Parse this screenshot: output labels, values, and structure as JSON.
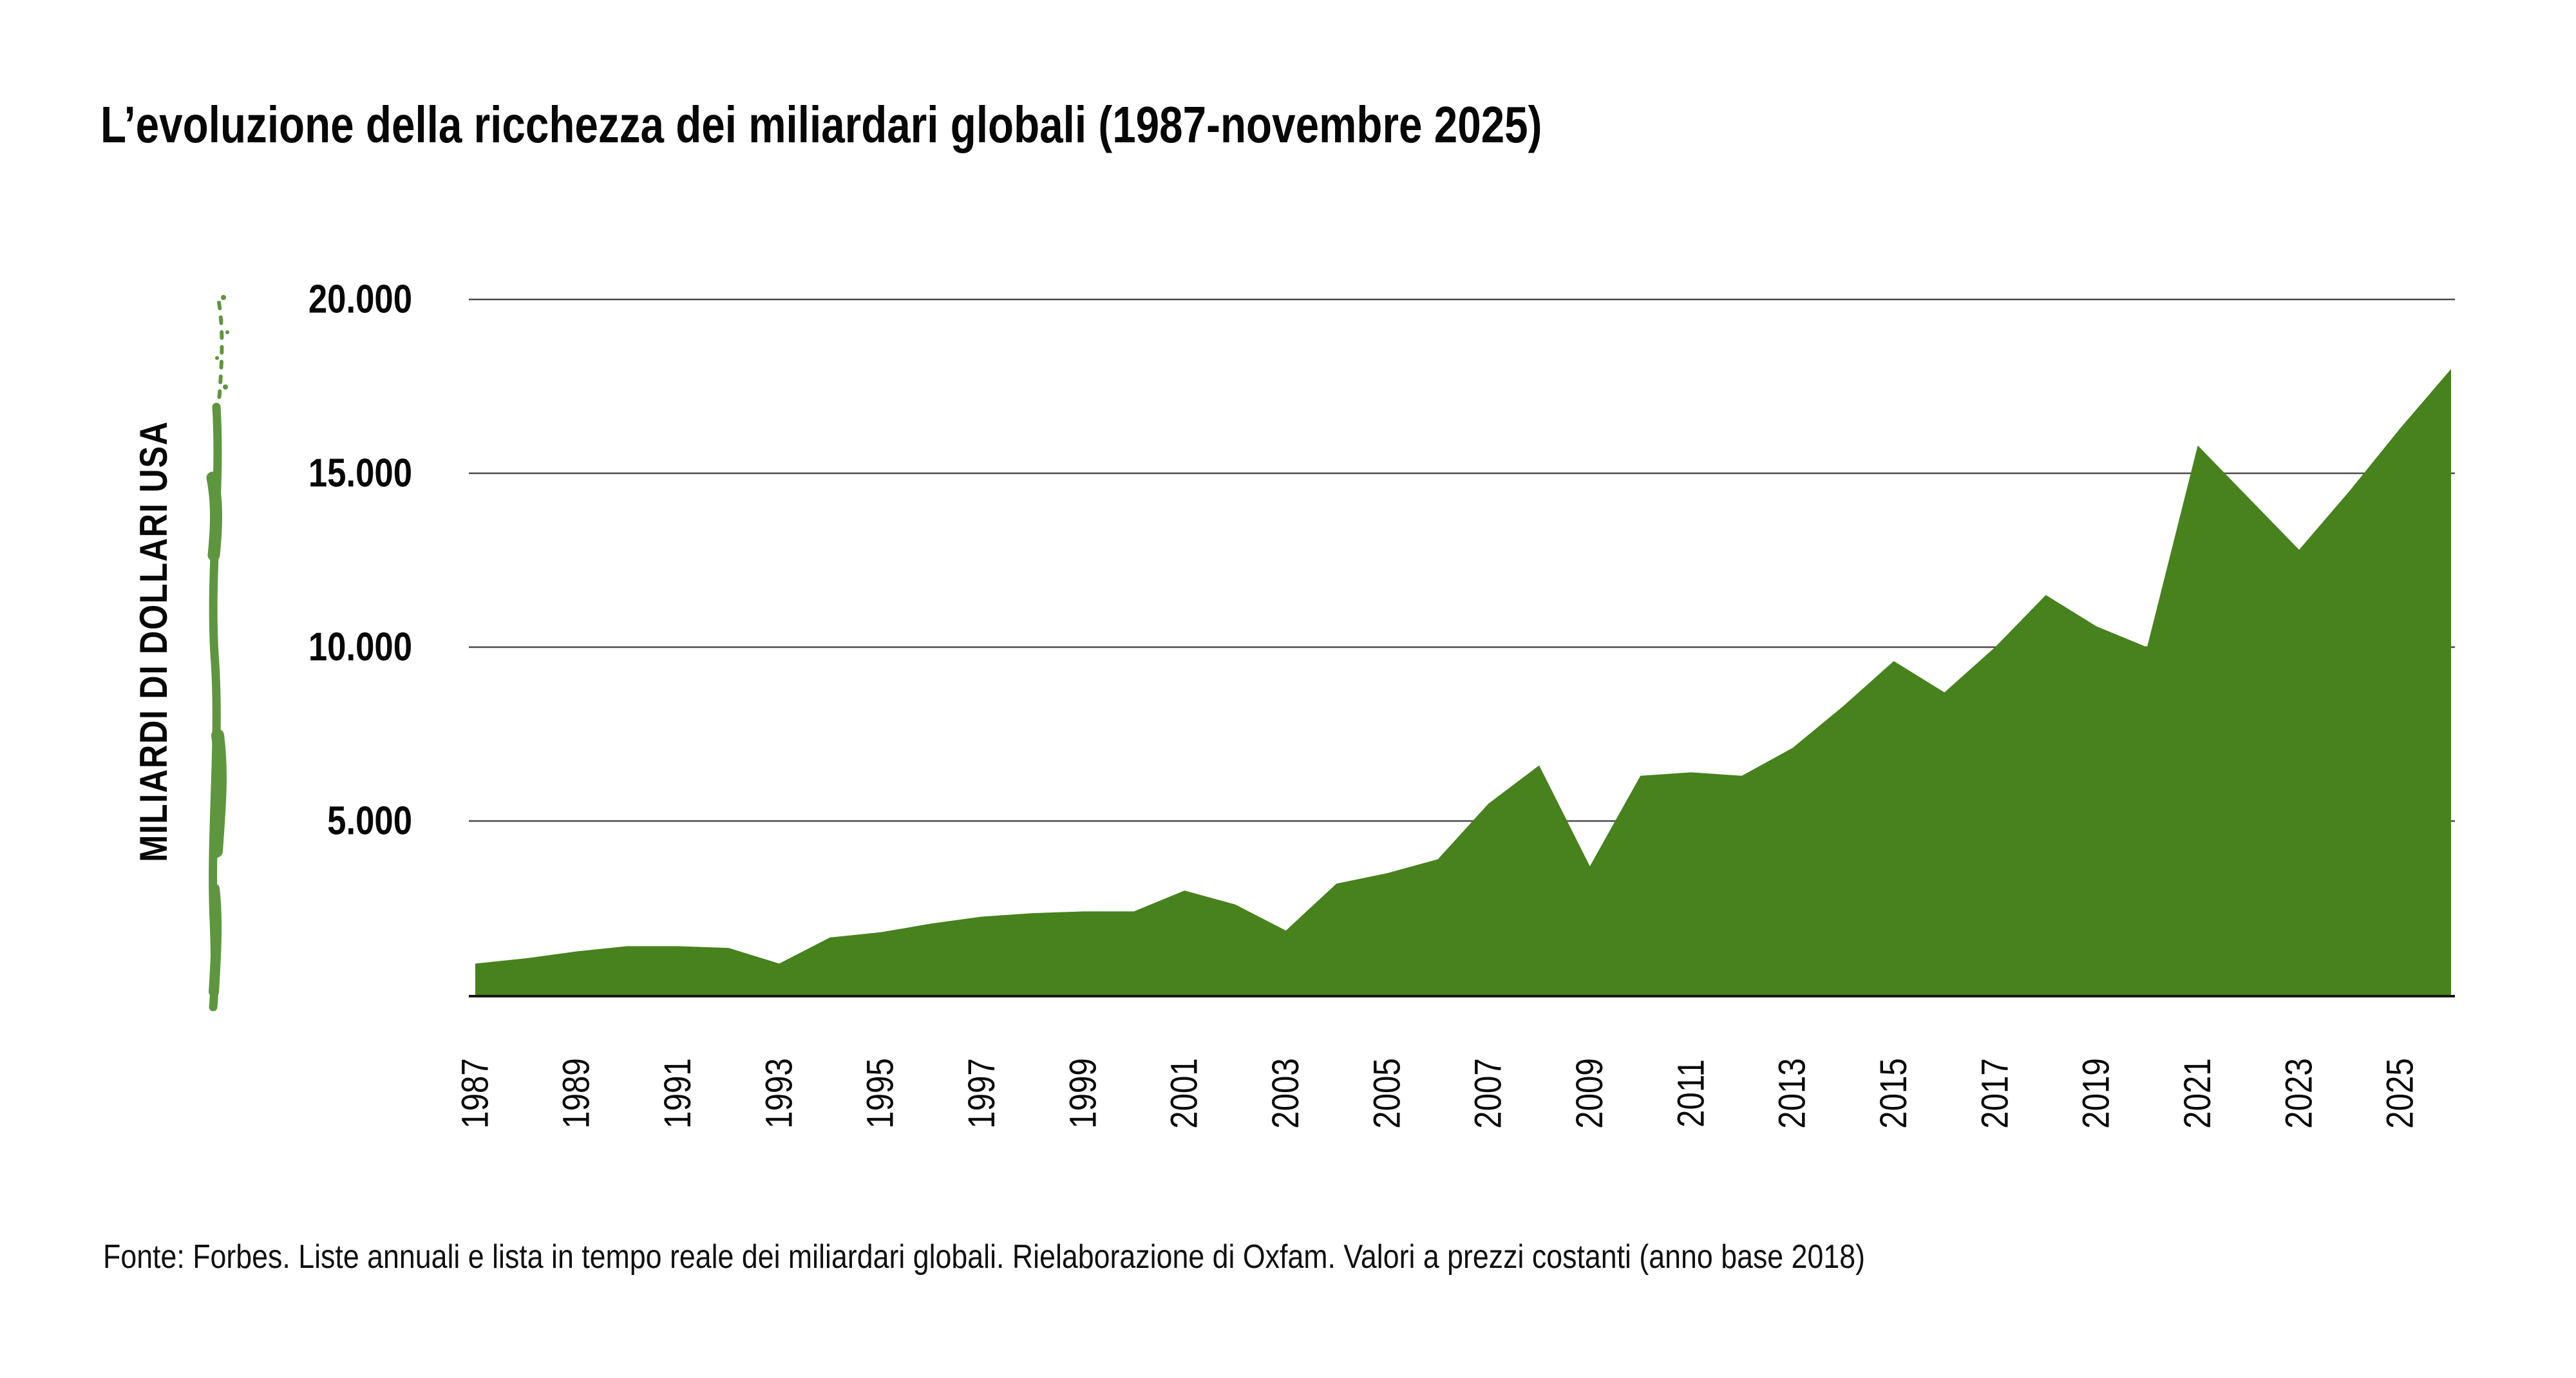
{
  "title": "L’evoluzione della ricchezza dei miliardari globali (1987-novembre 2025)",
  "y_axis": {
    "label": "MILIARDI DI DOLLARI USA",
    "tick_labels": [
      "20.000",
      "15.000",
      "10.000",
      "5.000"
    ]
  },
  "footer": "Fonte: Forbes. Liste annuali e lista in tempo reale dei miliardari globali. Rielaborazione di Oxfam. Valori a prezzi costanti (anno base 2018)",
  "colors": {
    "area_fill": "#47821D",
    "brush_stroke": "#5E963F",
    "gridline": "#4a4a4a",
    "baseline": "#161616",
    "text": "#070707"
  },
  "chart_data": {
    "type": "area",
    "title": "L’evoluzione della ricchezza dei miliardari globali (1987-novembre 2025)",
    "xlabel": "",
    "ylabel": "MILIARDI DI DOLLARI USA",
    "x": [
      "1987",
      "1988",
      "1989",
      "1990",
      "1991",
      "1992",
      "1993",
      "1994",
      "1995",
      "1996",
      "1997",
      "1998",
      "1999",
      "2000",
      "2001",
      "2002",
      "2003",
      "2004",
      "2005",
      "2006",
      "2007",
      "2008",
      "2009",
      "2010",
      "2011",
      "2012",
      "2013",
      "2014",
      "2015",
      "2016",
      "2017",
      "2018",
      "2019",
      "2020",
      "2021",
      "2022",
      "2023",
      "2024",
      "2025",
      "nov 2025"
    ],
    "values": [
      900,
      1050,
      1250,
      1400,
      1400,
      1350,
      900,
      1650,
      1800,
      2050,
      2250,
      2350,
      2400,
      2400,
      3000,
      2600,
      1850,
      3200,
      3500,
      3900,
      5500,
      6600,
      3700,
      6300,
      6400,
      6300,
      7100,
      8300,
      9600,
      8700,
      10000,
      11500,
      10600,
      10000,
      15800,
      14300,
      12800,
      14500,
      16300,
      18000
    ],
    "x_tick_labels": [
      "1987",
      "1989",
      "1991",
      "1993",
      "1995",
      "1997",
      "1999",
      "2001",
      "2003",
      "2005",
      "2007",
      "2009",
      "2011",
      "2013",
      "2015",
      "2017",
      "2019",
      "2021",
      "2023",
      "2025"
    ],
    "ylim": [
      0,
      20000
    ],
    "y_gridlines": [
      5000,
      10000,
      15000,
      20000
    ],
    "grid": true,
    "legend": "none"
  }
}
